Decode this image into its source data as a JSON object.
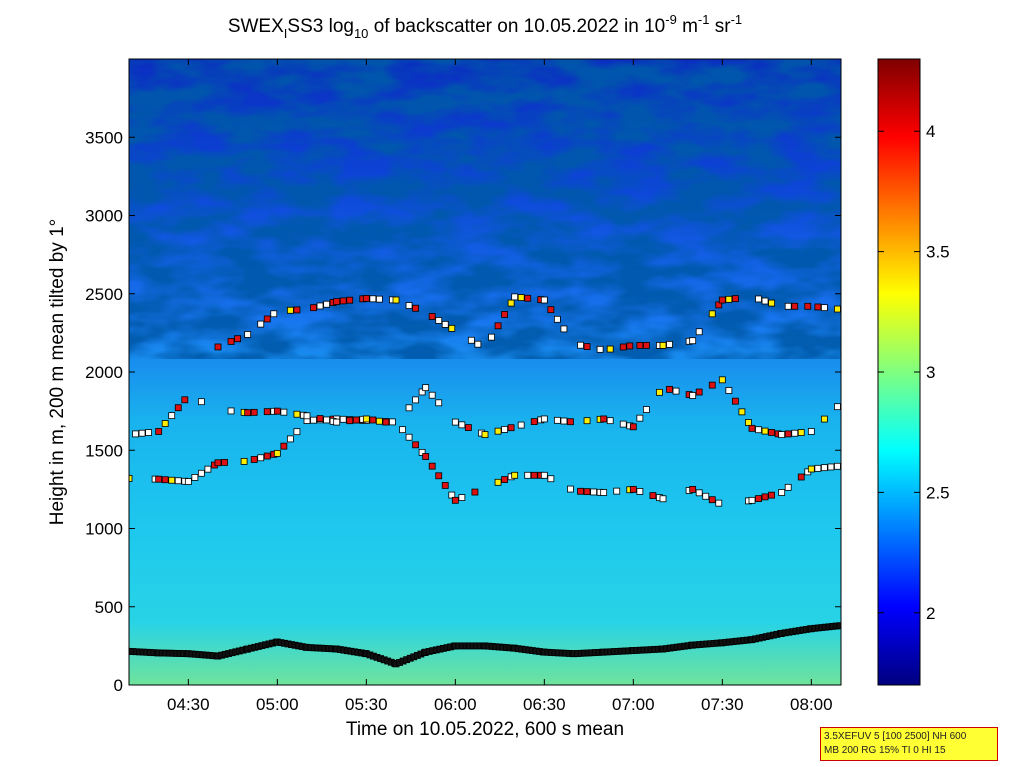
{
  "chart_data": {
    "type": "heatmap",
    "title": {
      "prefix": "SWEX",
      "prefix_sub": "I",
      "main": "SS3 log",
      "main_sub": "10",
      "mid": " of backscatter on 10.05.2022 in 10",
      "exp1": "-9",
      "unit_m": " m",
      "exp2": "-1",
      "unit_sr": " sr",
      "exp3": "-1"
    },
    "xlabel": "Time on 10.05.2022, 600 s mean",
    "ylabel": "Height in m, 200 m mean tilted by 1°",
    "x_range": [
      "04:10",
      "08:10"
    ],
    "x_ticks": [
      "04:30",
      "05:00",
      "05:30",
      "06:00",
      "06:30",
      "07:00",
      "07:30",
      "08:00"
    ],
    "ylim": [
      0,
      4000
    ],
    "y_ticks": [
      0,
      500,
      1000,
      1500,
      2000,
      2500,
      3000,
      3500
    ],
    "colorbar": {
      "range": [
        1.7,
        4.3
      ],
      "ticks": [
        2,
        2.5,
        3,
        3.5,
        4
      ],
      "colormap": "jet"
    },
    "series": [
      {
        "role": "surface-layer",
        "time_min": [
          0,
          10,
          20,
          30,
          40,
          50,
          60,
          70,
          80,
          90,
          100,
          110,
          120,
          130,
          140,
          150,
          160,
          170,
          180,
          190,
          200,
          210,
          220,
          230,
          240
        ],
        "height_m": [
          215,
          205,
          200,
          185,
          230,
          275,
          240,
          230,
          200,
          135,
          210,
          250,
          250,
          235,
          210,
          200,
          210,
          220,
          230,
          255,
          270,
          290,
          330,
          360,
          380
        ]
      },
      {
        "role": "layer-1",
        "time_min": [
          0,
          10,
          20,
          30,
          40,
          50,
          60,
          70,
          80,
          90,
          100,
          110,
          120,
          130,
          140,
          150,
          160,
          170,
          180,
          190,
          200,
          210,
          220,
          230,
          240
        ],
        "height_m": [
          1320,
          1315,
          1300,
          1420,
          1430,
          1480,
          1690,
          1700,
          1690,
          1680,
          1460,
          1180,
          1260,
          1340,
          1340,
          1240,
          1230,
          1250,
          1190,
          1250,
          1150,
          1180,
          1230,
          1380,
          1400
        ]
      },
      {
        "role": "layer-2",
        "time_min": [
          0,
          10,
          20,
          30,
          40,
          50,
          60,
          70,
          80,
          90,
          100,
          110,
          120,
          130,
          140,
          150,
          160,
          170,
          180,
          190,
          200,
          210,
          220,
          230,
          240
        ],
        "height_m": [
          1600,
          1620,
          1850,
          1760,
          1740,
          1750,
          1720,
          1680,
          1700,
          1670,
          1900,
          1680,
          1600,
          1650,
          1700,
          1680,
          1700,
          1650,
          1900,
          1850,
          1950,
          1640,
          1600,
          1620,
          1800
        ]
      },
      {
        "role": "layer-3",
        "time_min": [
          30,
          40,
          50,
          60,
          70,
          80,
          90,
          100,
          120,
          130,
          140,
          150,
          160,
          170,
          180,
          190,
          200,
          210,
          220,
          230,
          240
        ],
        "height_m": [
          2160,
          2240,
          2390,
          2400,
          2450,
          2470,
          2460,
          2380,
          2150,
          2480,
          2460,
          2180,
          2140,
          2170,
          2170,
          2200,
          2460,
          2480,
          2420,
          2420,
          2400
        ]
      }
    ]
  },
  "infobox": {
    "line1": "3.5XEFUV 5 [100 2500] NH 600",
    "line2": "MB 200 RG 15% TI 0 HI 15"
  }
}
